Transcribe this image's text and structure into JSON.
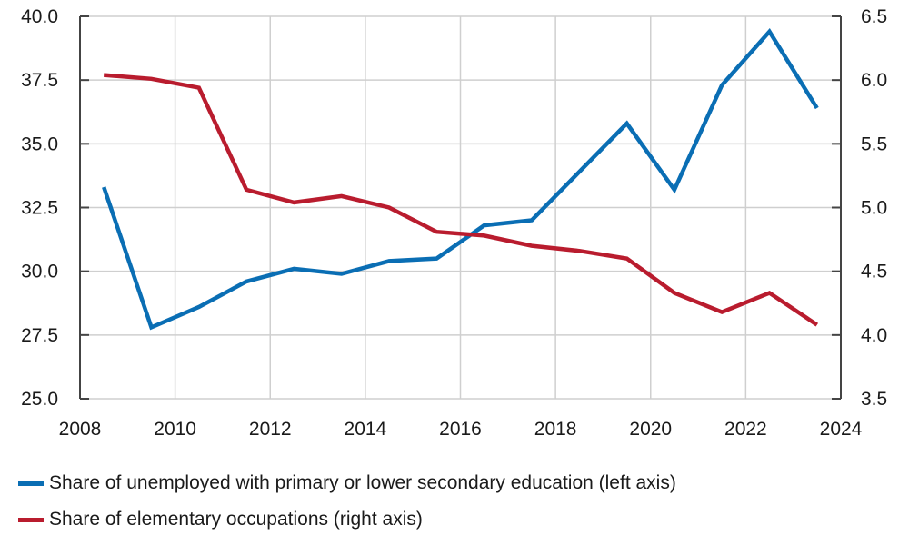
{
  "chart_data": {
    "type": "line",
    "title": "",
    "xlabel": "",
    "ylabel": "",
    "x_ticks": [
      "2008",
      "2010",
      "2012",
      "2014",
      "2016",
      "2018",
      "2020",
      "2022",
      "2024"
    ],
    "xlim": [
      2008,
      2024
    ],
    "left_axis": {
      "ylim": [
        25.0,
        40.0
      ],
      "ticks": [
        "25.0",
        "27.5",
        "30.0",
        "32.5",
        "35.0",
        "37.5",
        "40.0"
      ]
    },
    "right_axis": {
      "ylim": [
        3.5,
        6.5
      ],
      "ticks": [
        "3.5",
        "4.0",
        "4.5",
        "5.0",
        "5.5",
        "6.0",
        "6.5"
      ]
    },
    "grid": true,
    "legend_position": "bottom",
    "x": [
      2008.5,
      2009.5,
      2010.5,
      2011.5,
      2012.5,
      2013.5,
      2014.5,
      2015.5,
      2016.5,
      2017.5,
      2018.5,
      2019.5,
      2020.5,
      2021.5,
      2022.5,
      2023.5
    ],
    "series": [
      {
        "name": "Share of unemployed with primary or lower secondary education (left axis)",
        "axis": "left",
        "color": "#0a6eb4",
        "values": [
          33.3,
          27.8,
          28.6,
          29.6,
          30.1,
          29.9,
          30.4,
          30.5,
          31.8,
          32.0,
          33.9,
          35.8,
          33.2,
          37.3,
          39.4,
          36.4
        ]
      },
      {
        "name": "Share of elementary occupations (right axis)",
        "axis": "right",
        "color": "#b91c2e",
        "values": [
          6.04,
          6.01,
          5.94,
          5.14,
          5.04,
          5.09,
          5.0,
          4.81,
          4.78,
          4.7,
          4.66,
          4.6,
          4.33,
          4.18,
          4.33,
          4.08
        ]
      }
    ]
  },
  "legend": {
    "items": [
      {
        "label": "Share of unemployed with primary or lower secondary education (left axis)",
        "color": "#0a6eb4"
      },
      {
        "label": "Share of elementary occupations (right axis)",
        "color": "#b91c2e"
      }
    ]
  }
}
